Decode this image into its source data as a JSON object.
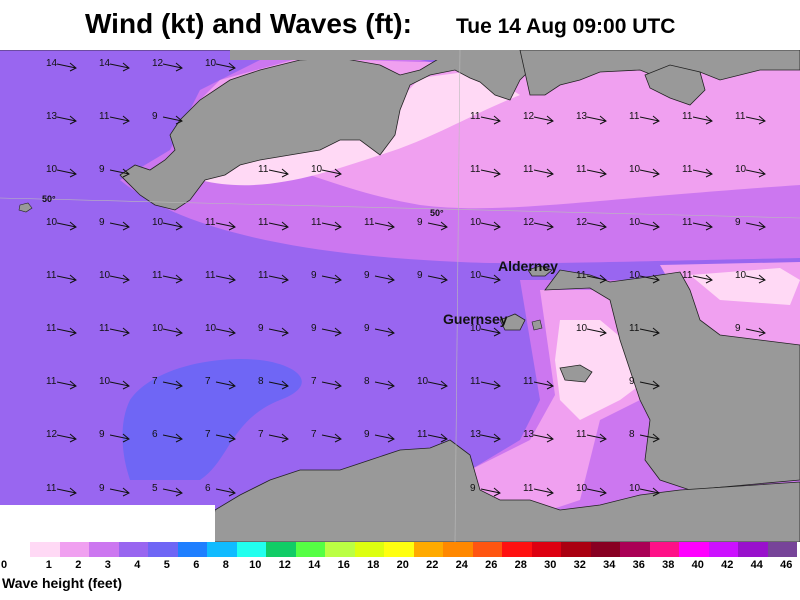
{
  "header": {
    "title": "Wind (kt) and Waves (ft):",
    "timestamp": "Tue 14 Aug 09:00 UTC"
  },
  "map": {
    "places": [
      {
        "name": "Alderney",
        "key": "alderney"
      },
      {
        "name": "Guernsey",
        "key": "guernsey"
      }
    ],
    "latitude_labels": [
      "50°",
      "50°"
    ],
    "colors": {
      "land": "#999999",
      "wave_0_1": "#ffd9f5",
      "wave_1_2": "#f0a0f0",
      "wave_2_3": "#cc77f0",
      "wave_3_4": "#9966f0",
      "wave_4_5": "#6f66f5"
    },
    "wind_rows": [
      {
        "y": 62,
        "speeds": [
          "14",
          "14",
          "12",
          "10"
        ]
      },
      {
        "y": 115,
        "speeds": [
          "13",
          "11",
          "9",
          "",
          "",
          "",
          "",
          "",
          "11",
          "12",
          "13",
          "11",
          "11",
          "11"
        ]
      },
      {
        "y": 168,
        "speeds": [
          "10",
          "9",
          "",
          "",
          "11",
          "10",
          "",
          "",
          "11",
          "11",
          "11",
          "10",
          "11",
          "10"
        ]
      },
      {
        "y": 221,
        "speeds": [
          "10",
          "9",
          "10",
          "11",
          "11",
          "11",
          "11",
          "9",
          "10",
          "12",
          "12",
          "10",
          "11",
          "9"
        ]
      },
      {
        "y": 274,
        "speeds": [
          "11",
          "10",
          "11",
          "11",
          "11",
          "9",
          "9",
          "9",
          "10",
          "",
          "11",
          "10",
          "11",
          "10"
        ]
      },
      {
        "y": 327,
        "speeds": [
          "11",
          "11",
          "10",
          "10",
          "9",
          "9",
          "9",
          "",
          "10",
          "",
          "10",
          "11",
          "",
          "9"
        ]
      },
      {
        "y": 380,
        "speeds": [
          "11",
          "10",
          "7",
          "7",
          "8",
          "7",
          "8",
          "10",
          "11",
          "11",
          "",
          "9",
          "",
          ""
        ]
      },
      {
        "y": 433,
        "speeds": [
          "12",
          "9",
          "6",
          "7",
          "7",
          "7",
          "9",
          "11",
          "13",
          "13",
          "11",
          "8",
          "",
          ""
        ]
      },
      {
        "y": 487,
        "speeds": [
          "11",
          "9",
          "5",
          "6",
          "",
          "",
          "",
          "",
          "9",
          "11",
          "10",
          "10",
          "",
          ""
        ]
      }
    ]
  },
  "legend": {
    "title": "Wave height (feet)",
    "ticks": [
      "0",
      "1",
      "2",
      "3",
      "4",
      "5",
      "6",
      "8",
      "10",
      "12",
      "14",
      "16",
      "18",
      "20",
      "22",
      "24",
      "26",
      "28",
      "30",
      "32",
      "34",
      "36",
      "38",
      "40",
      "42",
      "44",
      "46"
    ],
    "colors": [
      "#ffd9f5",
      "#f0a0f0",
      "#cc77f0",
      "#9966f0",
      "#6f66f5",
      "#1f7fff",
      "#11bbff",
      "#22ffee",
      "#11cc66",
      "#55ff44",
      "#bbff44",
      "#ddff11",
      "#ffff11",
      "#ffaa00",
      "#ff8800",
      "#ff5511",
      "#ff1111",
      "#dd0011",
      "#aa0011",
      "#880022",
      "#aa0055",
      "#ff1188",
      "#ff00ff",
      "#cc11ff",
      "#9911cc",
      "#774499"
    ]
  }
}
